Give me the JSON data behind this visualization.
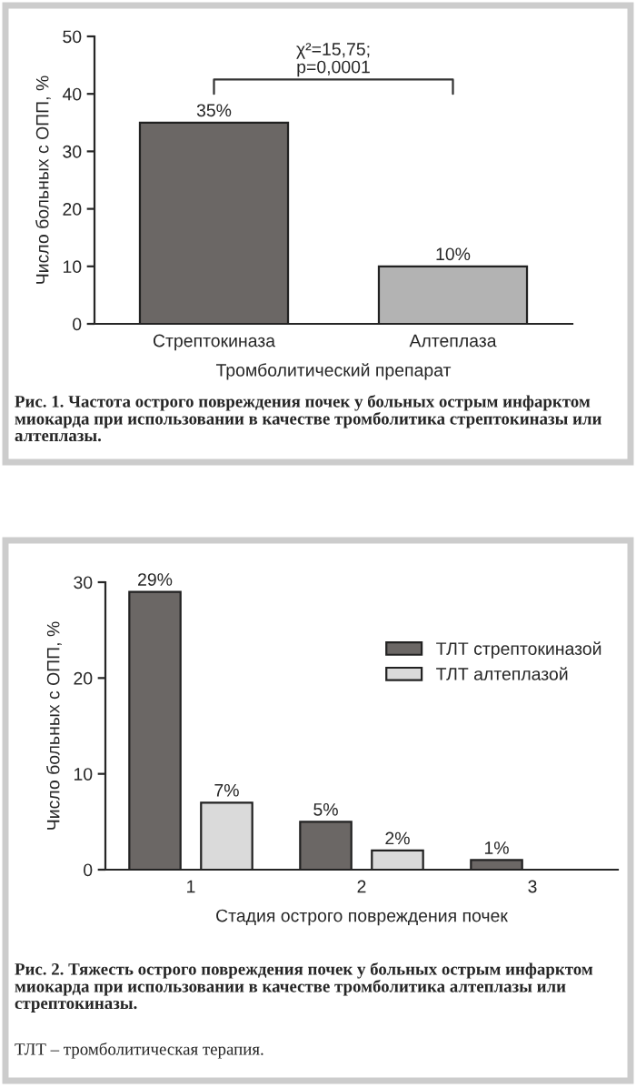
{
  "chart_data": [
    {
      "type": "bar",
      "categories": [
        "Стрептокиназа",
        "Алтеплаза"
      ],
      "xlabel": "Тромболитический препарат",
      "ylabel": "Число больных с ОПП, %",
      "ylim": [
        0,
        50
      ],
      "yticks": [
        0,
        10,
        20,
        30,
        40,
        50
      ],
      "grid": false,
      "legend": false,
      "series": [
        {
          "values": [
            35,
            10
          ],
          "colors": [
            "#6b6765",
            "#b3b3b3"
          ],
          "value_labels": [
            "35%",
            "10%"
          ]
        }
      ],
      "annotations": [
        "χ²=15,75;\np=0,0001",
        "Рис. 1. Частота острого повреждения почек у больных острым инфарктом миокарда при использовании в качестве тромболитика стрептокиназы или алтеплазы."
      ]
    },
    {
      "type": "bar",
      "categories": [
        "1",
        "2",
        "3"
      ],
      "xlabel": "Стадия острого повреждения почек",
      "ylabel": "Число больных с ОПП, %",
      "ylim": [
        0,
        30
      ],
      "yticks": [
        0,
        10,
        20,
        30
      ],
      "grid": false,
      "legend": "right",
      "series": [
        {
          "name": "ТЛТ стрептокиназой",
          "color": "#6b6765",
          "values": [
            29,
            5,
            1
          ],
          "value_labels": [
            "29%",
            "5%",
            "1%"
          ]
        },
        {
          "name": "ТЛТ алтеплазой",
          "color": "#dadada",
          "values": [
            7,
            2,
            null
          ],
          "value_labels": [
            "7%",
            "2%",
            null
          ]
        }
      ],
      "annotations": [
        "Рис. 2. Тяжесть острого повреждения почек у больных острым инфарктом миокарда при использовании в качестве тромболитика алтеплазы или стрептокиназы.",
        "ТЛТ – тромболитическая терапия."
      ]
    }
  ]
}
